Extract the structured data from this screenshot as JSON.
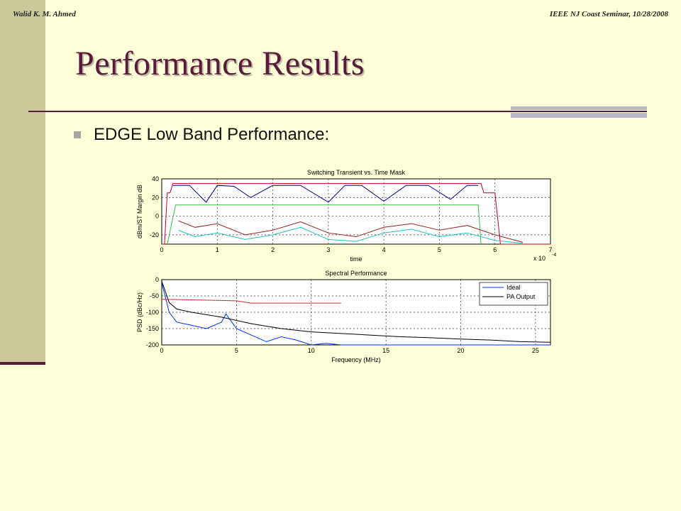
{
  "header": {
    "author": "Walid K. M. Ahmed",
    "venue": "IEEE NJ Coast Seminar, 10/28/2008"
  },
  "slide": {
    "title": "Performance Results",
    "bullet": "EDGE Low Band Performance:"
  },
  "colors": {
    "title": "#5a1a3a",
    "background": "#ffffd9",
    "left_bar": "#c9c99a"
  },
  "chart_data": [
    {
      "type": "line",
      "title": "Switching Transient vs. Time Mask",
      "xlabel": "time",
      "ylabel": "dBm/ST Margin dB",
      "xlim": [
        0,
        7
      ],
      "ylim": [
        -30,
        40
      ],
      "x_exponent": "x 10",
      "x_exponent_power": "-4",
      "xticks": [
        "0",
        "1",
        "2",
        "3",
        "4",
        "5",
        "6",
        "7"
      ],
      "yticks": [
        "-20",
        "0",
        "20",
        "40"
      ],
      "grid": true,
      "series": [
        {
          "color": "#c00020",
          "x": [
            0,
            0.05,
            0.1,
            0.15,
            0.2,
            5.75,
            5.8,
            5.85,
            5.9,
            6.0,
            6.1,
            7
          ],
          "y": [
            -30,
            -30,
            25,
            25,
            35,
            35,
            25,
            25,
            25,
            25,
            -30,
            -30
          ]
        },
        {
          "color": "#0000a0",
          "x": [
            0.2,
            0.5,
            0.8,
            1.0,
            1.3,
            1.6,
            2.0,
            2.5,
            3.0,
            3.3,
            3.6,
            4.0,
            4.4,
            4.8,
            5.2,
            5.5,
            5.7
          ],
          "y": [
            33,
            33,
            15,
            33,
            32,
            20,
            33,
            33,
            15,
            33,
            33,
            16,
            33,
            33,
            18,
            33,
            33
          ]
        },
        {
          "color": "#30c040",
          "x": [
            0.1,
            0.25,
            0.3,
            5.65,
            5.7,
            5.75
          ],
          "y": [
            -30,
            12,
            12,
            12,
            12,
            -30
          ]
        },
        {
          "color": "#a02020",
          "x": [
            0.3,
            0.6,
            1.0,
            1.5,
            2.0,
            2.5,
            3.0,
            3.5,
            4.0,
            4.5,
            5.0,
            5.5,
            6.0,
            6.5
          ],
          "y": [
            -5,
            -12,
            -8,
            -20,
            -15,
            -6,
            -18,
            -22,
            -12,
            -8,
            -15,
            -10,
            -20,
            -28
          ]
        },
        {
          "color": "#20c0c0",
          "x": [
            0.3,
            0.6,
            1.0,
            1.5,
            2.0,
            2.5,
            3.0,
            3.5,
            4.0,
            4.5,
            5.0,
            5.5,
            6.0,
            6.5
          ],
          "y": [
            -15,
            -22,
            -18,
            -25,
            -20,
            -12,
            -25,
            -27,
            -18,
            -14,
            -22,
            -18,
            -26,
            -29
          ]
        }
      ]
    },
    {
      "type": "line",
      "title": "Spectral Performance",
      "xlabel": "Frequency (MHz)",
      "ylabel": "PSD (dBc/Hz)",
      "xlim": [
        0,
        26
      ],
      "ylim": [
        -200,
        0
      ],
      "xticks": [
        "0",
        "5",
        "10",
        "15",
        "20",
        "25"
      ],
      "yticks": [
        "0",
        "-50",
        "-100",
        "-150",
        "-200"
      ],
      "grid": true,
      "legend": "top-right",
      "series": [
        {
          "name": "Ideal",
          "color": "#0030ff",
          "x": [
            0,
            0.5,
            1,
            2,
            3,
            4,
            4.3,
            5,
            6,
            7,
            8,
            9,
            10,
            11,
            12,
            13,
            15,
            18,
            22,
            26
          ],
          "y": [
            -10,
            -100,
            -130,
            -140,
            -150,
            -130,
            -105,
            -150,
            -170,
            -190,
            -175,
            -185,
            -200,
            -195,
            -200,
            -200,
            -200,
            -200,
            -200,
            -200
          ]
        },
        {
          "name": "PA Output",
          "color": "#000000",
          "x": [
            0,
            0.5,
            1,
            2,
            4,
            6,
            8,
            10,
            12,
            14,
            16,
            18,
            20,
            22,
            24,
            26
          ],
          "y": [
            -5,
            -70,
            -90,
            -100,
            -115,
            -135,
            -150,
            -160,
            -165,
            -170,
            -175,
            -178,
            -182,
            -185,
            -190,
            -192
          ]
        },
        {
          "color": "#c03030",
          "x": [
            0,
            5,
            6,
            12
          ],
          "y": [
            -60,
            -65,
            -72,
            -72
          ]
        }
      ]
    }
  ]
}
